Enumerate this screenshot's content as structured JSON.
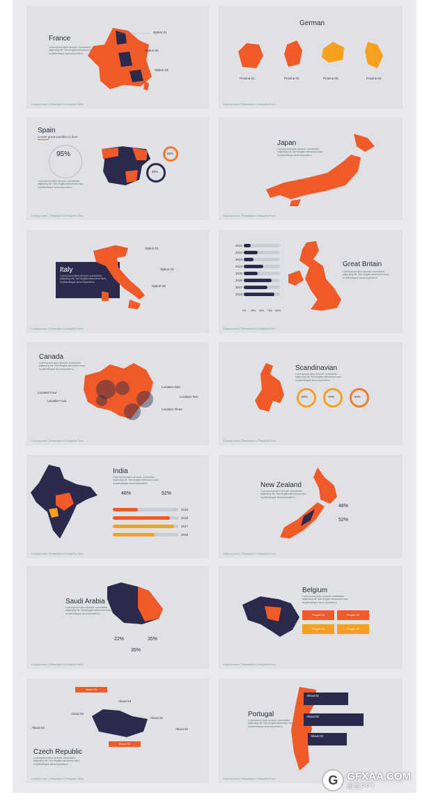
{
  "lorem_short": "Lorem ipsum dolor sit amet, consectetur adipiscing elit. Sed fringilla elementum risus, id pellentesque lacus imperdiet a.",
  "footer_text": "Company name  |  Presentation to DesignRunTeam",
  "slides": {
    "france": {
      "title": "France",
      "options": [
        "Option 01",
        "Option 02",
        "Option 03"
      ],
      "page": "44"
    },
    "german": {
      "title": "German",
      "provinces": [
        "Provine 01",
        "Provine 02",
        "Provine 03",
        "Provine 04"
      ],
      "page": "45"
    },
    "spain": {
      "title": "Spain",
      "subtitle": "Create great subtitles in here",
      "pct_main": "95%",
      "pct_a": "50%",
      "pct_b": "80%",
      "page": "46"
    },
    "japan": {
      "title": "Japan",
      "page": "46"
    },
    "italy": {
      "title": "Italy",
      "options": [
        "Option 01",
        "Option 02",
        "Option 03"
      ],
      "page": "46"
    },
    "great_britain": {
      "title": "Great Britain",
      "years": [
        "2011",
        "2012",
        "2013",
        "2014",
        "2015",
        "2016",
        "2017",
        "2018"
      ],
      "axis": [
        "0%",
        "25%",
        "50%",
        "75%",
        "100%"
      ],
      "page": "47"
    },
    "canada": {
      "title": "Canada",
      "locations": [
        "Location One",
        "Location Two",
        "Location Three",
        "Location Four",
        "Location Four"
      ],
      "page": "48"
    },
    "scandinavian": {
      "title": "Scandinavian",
      "rings": [
        "80%",
        "70%",
        "95%"
      ],
      "page": "49"
    },
    "india": {
      "title": "India",
      "pct_a": "48%",
      "pct_b": "52%",
      "years": [
        "2015",
        "2016",
        "2017",
        "2018"
      ],
      "page": "52"
    },
    "new_zealand": {
      "title": "New Zealand",
      "pct_a": "48%",
      "pct_b": "52%",
      "page": "53"
    },
    "saudi": {
      "title": "Saudi Arabia",
      "pcts": [
        "22%",
        "35%",
        "35%"
      ],
      "page": "54"
    },
    "belgium": {
      "title": "Belgium",
      "boxes": [
        "People 01",
        "People 02",
        "People 03",
        "People 04"
      ],
      "page": "55"
    },
    "czech": {
      "title": "Czech Republic",
      "abouts": [
        "About 01",
        "About 02",
        "About 03",
        "About 04",
        "About 04",
        "About 05"
      ],
      "page": "56"
    },
    "portugal": {
      "title": "Portugal",
      "abouts": [
        "About 01",
        "About 02",
        "About 03"
      ],
      "page": "56"
    }
  },
  "watermark": {
    "logo": "G",
    "site": "GFXAA.COM",
    "sub": "图克PPT"
  },
  "colors": {
    "orange": "#f05a28",
    "navy": "#2b2a4c",
    "amber": "#f6a020",
    "slide_bg": "#dfe1e4"
  }
}
